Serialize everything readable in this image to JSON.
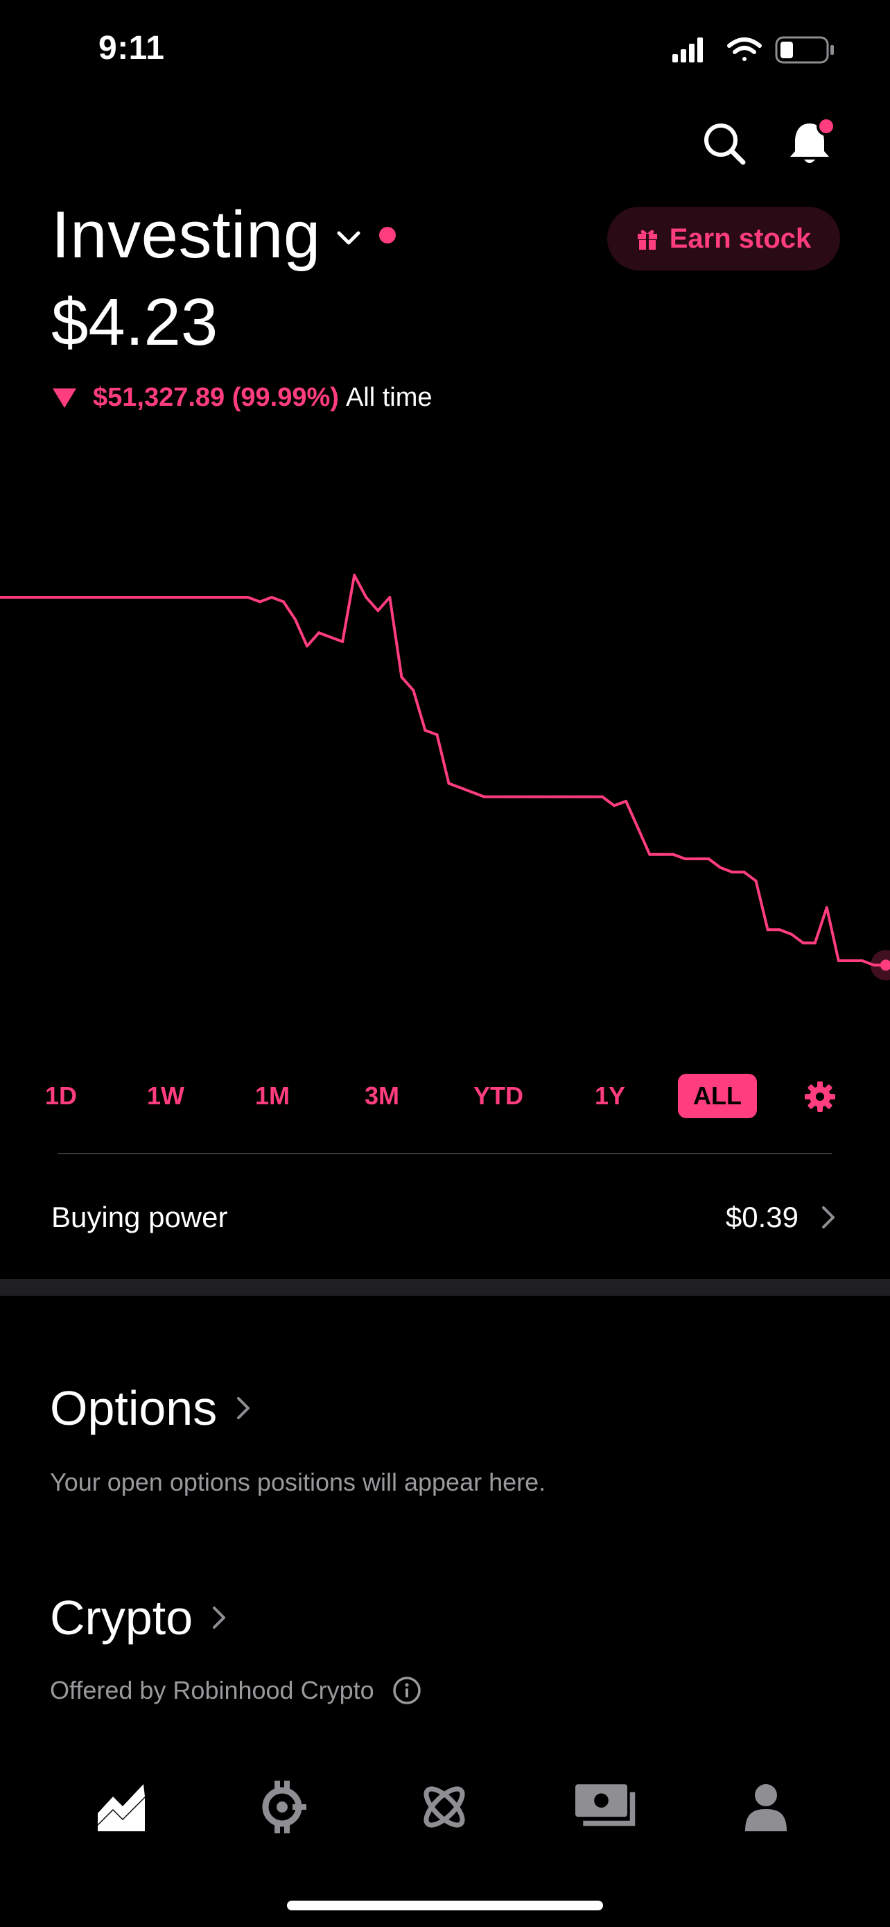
{
  "status_bar": {
    "time": "9:11"
  },
  "header": {
    "title": "Investing",
    "earn_button_label": "Earn stock",
    "portfolio_value": "$4.23",
    "change_value": "$51,327.89 (99.99%)",
    "change_period": "All time",
    "change_direction": "down"
  },
  "colors": {
    "accent": "#ff3d7f",
    "background": "#000000",
    "muted_text": "#9a9a9e"
  },
  "chart_data": {
    "type": "line",
    "series": [
      {
        "values": [
          100,
          100,
          100,
          100,
          100,
          100,
          100,
          100,
          100,
          100,
          100,
          100,
          100,
          100,
          100,
          100,
          100,
          100,
          100,
          100,
          100,
          100,
          99,
          100,
          99,
          95,
          89,
          92,
          91,
          90,
          105,
          100,
          97,
          100,
          82,
          79,
          70,
          69,
          58,
          57,
          56,
          55,
          55,
          55,
          55,
          55,
          55,
          55,
          55,
          55,
          55,
          55,
          53,
          54,
          48,
          42,
          42,
          42,
          41,
          41,
          41,
          39,
          38,
          38,
          36,
          25,
          25,
          24,
          22,
          22,
          30,
          18,
          18,
          18,
          17,
          17
        ]
      }
    ]
  },
  "timeframes": {
    "items": [
      "1D",
      "1W",
      "1M",
      "3M",
      "YTD",
      "1Y",
      "ALL"
    ],
    "selected": "ALL"
  },
  "buying_power": {
    "label": "Buying power",
    "value": "$0.39"
  },
  "options": {
    "title": "Options",
    "subtitle": "Your open options positions will appear here."
  },
  "crypto": {
    "title": "Crypto",
    "subtitle": "Offered by Robinhood Crypto"
  },
  "bottom_nav": {
    "items": [
      "investing-icon",
      "crypto-icon",
      "browse-icon",
      "cash-icon",
      "account-icon"
    ]
  }
}
